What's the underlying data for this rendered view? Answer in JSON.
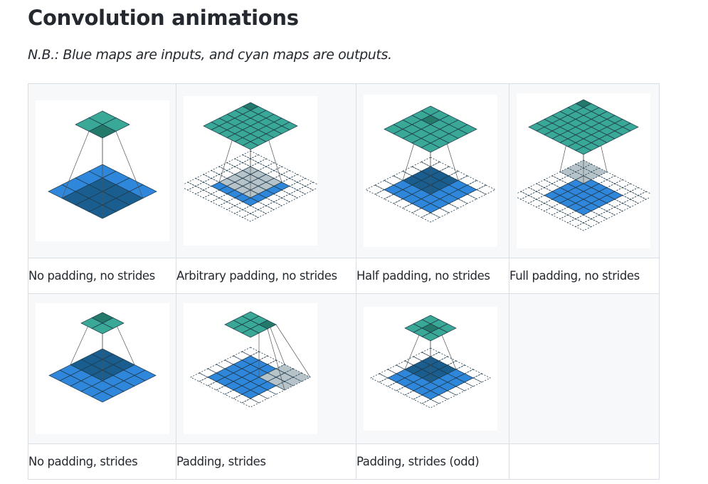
{
  "heading": "Convolution animations",
  "note": "N.B.: Blue maps are inputs, and cyan maps are outputs.",
  "colors": {
    "input_blue": "#2f87db",
    "input_dark": "#1a5e8f",
    "output_cyan": "#3aa896",
    "output_dark": "#247a6a",
    "kernel_gray": "#a9b8bf",
    "grid_line": "#1f3b4d"
  },
  "animations": [
    {
      "caption": "No padding, no strides"
    },
    {
      "caption": "Arbitrary padding, no strides"
    },
    {
      "caption": "Half padding, no strides"
    },
    {
      "caption": "Full padding, no strides"
    },
    {
      "caption": "No padding, strides"
    },
    {
      "caption": "Padding, strides"
    },
    {
      "caption": "Padding, strides (odd)"
    }
  ]
}
